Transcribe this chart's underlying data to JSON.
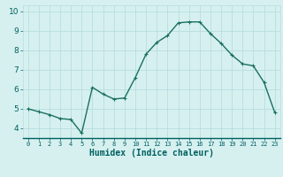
{
  "x": [
    0,
    1,
    2,
    3,
    4,
    5,
    6,
    7,
    8,
    9,
    10,
    11,
    12,
    13,
    14,
    15,
    16,
    17,
    18,
    19,
    20,
    21,
    22,
    23
  ],
  "y": [
    5.0,
    4.85,
    4.7,
    4.5,
    4.45,
    3.75,
    6.1,
    5.75,
    5.5,
    5.55,
    6.6,
    7.8,
    8.4,
    8.75,
    9.4,
    9.45,
    9.45,
    8.85,
    8.35,
    7.75,
    7.3,
    7.2,
    6.35,
    4.8
  ],
  "line_color": "#1a7060",
  "marker": "+",
  "marker_size": 3,
  "linewidth": 1.0,
  "xlabel": "Humidex (Indice chaleur)",
  "xlabel_fontsize": 7,
  "xlabel_color": "#006060",
  "tick_color": "#006060",
  "background_color": "#d6f0f0",
  "grid_color": "#b8dede",
  "tick_labelsize": 6,
  "ylim": [
    3.5,
    10.3
  ],
  "xlim": [
    -0.5,
    23.5
  ],
  "yticks": [
    4,
    5,
    6,
    7,
    8,
    9,
    10
  ],
  "xticks": [
    0,
    1,
    2,
    3,
    4,
    5,
    6,
    7,
    8,
    9,
    10,
    11,
    12,
    13,
    14,
    15,
    16,
    17,
    18,
    19,
    20,
    21,
    22,
    23
  ]
}
